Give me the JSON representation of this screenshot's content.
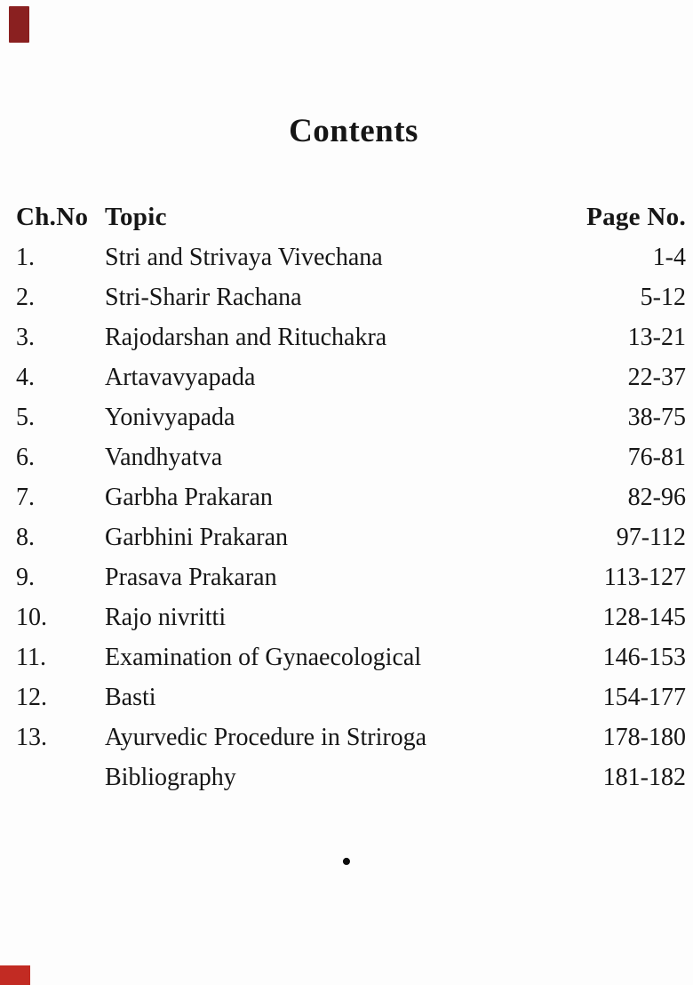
{
  "document": {
    "title": "Contents",
    "end_mark": "•"
  },
  "table": {
    "headers": {
      "ch_no": "Ch.No",
      "topic": "Topic",
      "page_no": "Page No."
    },
    "rows": [
      {
        "ch": "1.",
        "topic": "Stri and Strivaya Vivechana",
        "pages": "1-4"
      },
      {
        "ch": "2.",
        "topic": "Stri-Sharir Rachana",
        "pages": "5-12"
      },
      {
        "ch": "3.",
        "topic": "Rajodarshan and Rituchakra",
        "pages": "13-21"
      },
      {
        "ch": "4.",
        "topic": "Artavavyapada",
        "pages": "22-37"
      },
      {
        "ch": "5.",
        "topic": "Yonivyapada",
        "pages": "38-75"
      },
      {
        "ch": "6.",
        "topic": "Vandhyatva",
        "pages": "76-81"
      },
      {
        "ch": "7.",
        "topic": "Garbha Prakaran",
        "pages": "82-96"
      },
      {
        "ch": "8.",
        "topic": "Garbhini Prakaran",
        "pages": "97-112"
      },
      {
        "ch": "9.",
        "topic": "Prasava Prakaran",
        "pages": "113-127"
      },
      {
        "ch": "10.",
        "topic": "Rajo nivritti",
        "pages": "128-145"
      },
      {
        "ch": "11.",
        "topic": "Examination of Gynaecological",
        "pages": "146-153"
      },
      {
        "ch": "12.",
        "topic": "Basti",
        "pages": "154-177"
      },
      {
        "ch": "13.",
        "topic": "Ayurvedic Procedure in Striroga",
        "pages": "178-180"
      },
      {
        "ch": "",
        "topic": "Bibliography",
        "pages": "181-182"
      }
    ]
  },
  "colors": {
    "ink": "#161616",
    "paper": "#fdfdfd",
    "top_left_mark": "#8a2020",
    "bottom_left_mark": "#c22b23"
  }
}
